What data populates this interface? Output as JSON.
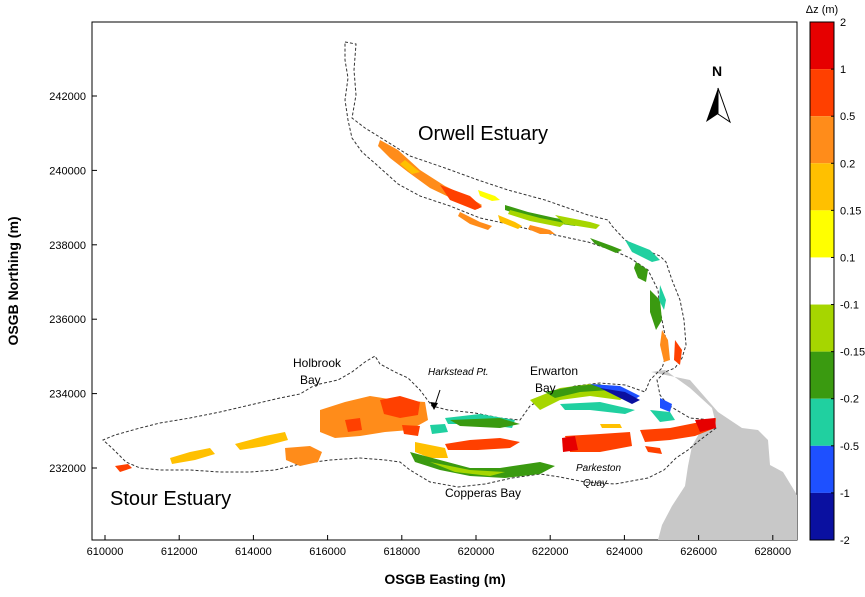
{
  "axes": {
    "xlabel": "OSGB Easting (m)",
    "ylabel": "OSGB Northing (m)",
    "x_ticks": [
      "610000",
      "612000",
      "614000",
      "616000",
      "618000",
      "620000",
      "622000",
      "624000",
      "626000",
      "628000"
    ],
    "y_ticks": [
      "232000",
      "234000",
      "236000",
      "238000",
      "240000",
      "242000"
    ]
  },
  "labels": {
    "orwell": "Orwell Estuary",
    "stour": "Stour Estuary",
    "holbrook_1": "Holbrook",
    "holbrook_2": "Bay",
    "harkstead": "Harkstead Pt.",
    "erwarton_1": "Erwarton",
    "erwarton_2": "Bay",
    "copperas": "Copperas Bay",
    "parkeston_1": "Parkeston",
    "parkeston_2": "Quay"
  },
  "north_arrow": {
    "label": "N"
  },
  "colorbar": {
    "title": "Δz (m)",
    "bins": [
      {
        "label": "2",
        "color": "#e60000"
      },
      {
        "label": "1",
        "color": "#ff4000"
      },
      {
        "label": "0.5",
        "color": "#ff8c1a"
      },
      {
        "label": "0.2",
        "color": "#ffc000"
      },
      {
        "label": "0.15",
        "color": "#ffff00"
      },
      {
        "label": "0.1",
        "color": "#ffffff"
      },
      {
        "label": "-0.1",
        "color": "#a6d600"
      },
      {
        "label": "-0.15",
        "color": "#3a9a10"
      },
      {
        "label": "-0.2",
        "color": "#20d0a0"
      },
      {
        "label": "-0.5",
        "color": "#1e50ff"
      },
      {
        "label": "-1",
        "color": "#0a10a0"
      }
    ],
    "bottom_label": "-2"
  },
  "colors": {
    "land": "#c8c8c8",
    "outline": "#333333"
  }
}
